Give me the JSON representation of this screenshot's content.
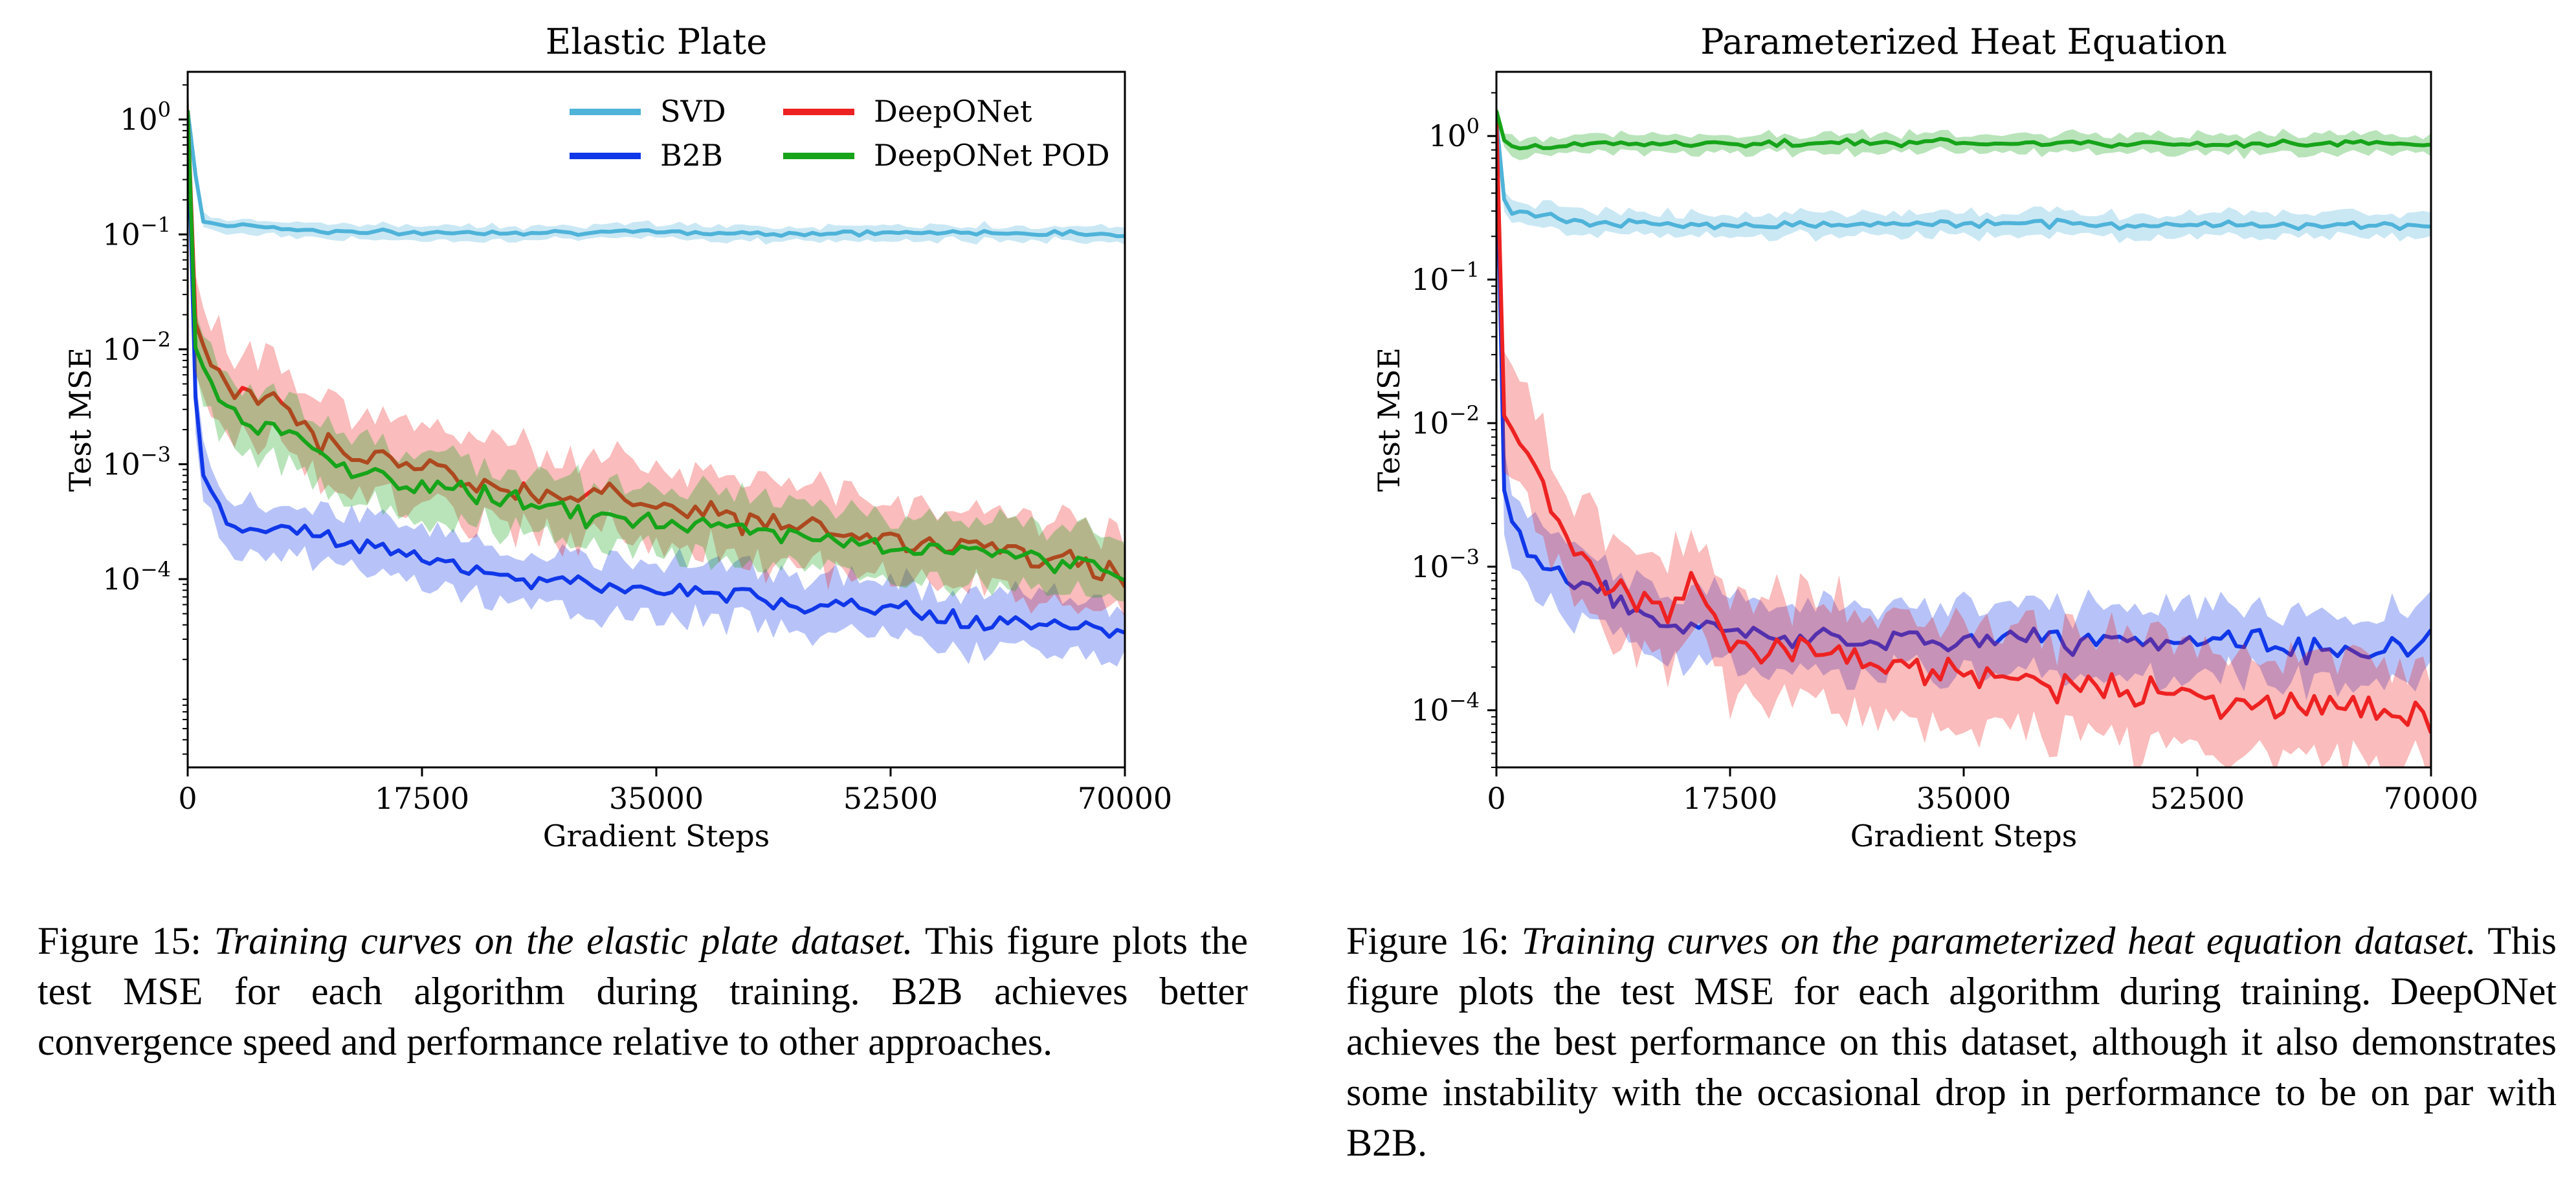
{
  "chart_data": [
    {
      "type": "line",
      "title": "Elastic Plate",
      "xlabel": "Gradient Steps",
      "ylabel": "Test MSE",
      "y_scale": "log",
      "xlim": [
        0,
        70000
      ],
      "ylim": [
        2.3e-06,
        2.6
      ],
      "x_ticks": [
        0,
        17500,
        35000,
        52500,
        70000
      ],
      "x_tick_labels": [
        "0",
        "17500",
        "35000",
        "52500",
        "70000"
      ],
      "y_ticks": [
        1,
        0.1,
        0.01,
        0.001,
        0.0001
      ],
      "y_tick_labels": [
        {
          "base": "10",
          "exp": "0"
        },
        {
          "base": "10",
          "exp": "−1"
        },
        {
          "base": "10",
          "exp": "−2"
        },
        {
          "base": "10",
          "exp": "−3"
        },
        {
          "base": "10",
          "exp": "−4"
        }
      ],
      "grid": false,
      "legend_position": "upper-right",
      "legend_columns": 2,
      "shaded_band": "spread across runs",
      "series": [
        {
          "name": "SVD",
          "color": "#4fb3d9",
          "x": [
            0,
            1000,
            3000,
            5000,
            8000,
            12000,
            17500,
            25000,
            35000,
            45000,
            52500,
            60000,
            70000
          ],
          "values": [
            1.2,
            0.13,
            0.12,
            0.12,
            0.11,
            0.105,
            0.103,
            0.105,
            0.104,
            0.102,
            0.103,
            0.104,
            0.1
          ],
          "band": 0.08
        },
        {
          "name": "B2B",
          "color": "#1037e8",
          "x": [
            0,
            700,
            1500,
            3000,
            5000,
            7000,
            10000,
            13000,
            17500,
            22000,
            26000,
            30000,
            35000,
            40000,
            45000,
            52500,
            57000,
            62000,
            67000,
            70000
          ],
          "values": [
            1.2,
            0.0012,
            0.0006,
            0.00035,
            0.00025,
            0.0003,
            0.00022,
            0.0002,
            0.00015,
            0.00012,
            0.0001,
            9e-05,
            8e-05,
            7.5e-05,
            6e-05,
            5.5e-05,
            4.5e-05,
            4e-05,
            3.8e-05,
            3.5e-05
          ],
          "band": 0.3
        },
        {
          "name": "DeepONet",
          "color": "#ee2222",
          "x": [
            0,
            600,
            1500,
            3000,
            5000,
            8000,
            10000,
            13000,
            17500,
            20000,
            24000,
            28000,
            31000,
            35000,
            40000,
            45000,
            50000,
            55000,
            60000,
            65000,
            70000
          ],
          "values": [
            1.2,
            0.015,
            0.009,
            0.005,
            0.004,
            0.003,
            0.0015,
            0.0012,
            0.001,
            0.0008,
            0.0006,
            0.0005,
            0.0007,
            0.0004,
            0.00035,
            0.0003,
            0.00025,
            0.0002,
            0.00018,
            0.00015,
            0.0001
          ],
          "band": 0.45
        },
        {
          "name": "DeepONet POD",
          "color": "#17a41a",
          "x": [
            0,
            600,
            1500,
            3000,
            5000,
            8000,
            10000,
            13000,
            17500,
            20000,
            24000,
            28000,
            31000,
            35000,
            40000,
            45000,
            50000,
            55000,
            60000,
            65000,
            70000
          ],
          "values": [
            1.2,
            0.009,
            0.006,
            0.003,
            0.002,
            0.0018,
            0.0012,
            0.0008,
            0.00065,
            0.0006,
            0.0005,
            0.0004,
            0.00035,
            0.0003,
            0.00028,
            0.00025,
            0.0002,
            0.00018,
            0.00017,
            0.00015,
            0.00011
          ],
          "band": 0.35
        }
      ]
    },
    {
      "type": "line",
      "title": "Parameterized Heat Equation",
      "xlabel": "Gradient Steps",
      "ylabel": "Test MSE",
      "y_scale": "log",
      "xlim": [
        0,
        70000
      ],
      "ylim": [
        4e-05,
        2.8
      ],
      "x_ticks": [
        0,
        17500,
        35000,
        52500,
        70000
      ],
      "x_tick_labels": [
        "0",
        "17500",
        "35000",
        "52500",
        "70000"
      ],
      "y_ticks": [
        1,
        0.1,
        0.01,
        0.001,
        0.0001
      ],
      "y_tick_labels": [
        {
          "base": "10",
          "exp": "0"
        },
        {
          "base": "10",
          "exp": "−1"
        },
        {
          "base": "10",
          "exp": "−2"
        },
        {
          "base": "10",
          "exp": "−3"
        },
        {
          "base": "10",
          "exp": "−4"
        }
      ],
      "grid": false,
      "shaded_band": "spread across runs",
      "series": [
        {
          "name": "SVD",
          "color": "#4fb3d9",
          "x": [
            0,
            700,
            2000,
            4000,
            7000,
            10000,
            17500,
            25000,
            35000,
            45000,
            52500,
            60000,
            70000
          ],
          "values": [
            1.3,
            0.28,
            0.3,
            0.27,
            0.24,
            0.25,
            0.24,
            0.24,
            0.245,
            0.24,
            0.24,
            0.24,
            0.24
          ],
          "band": 0.1
        },
        {
          "name": "B2B",
          "color": "#1037e8",
          "x": [
            0,
            400,
            1200,
            2500,
            4000,
            6000,
            8000,
            10000,
            13000,
            17500,
            22000,
            27000,
            31000,
            35000,
            40000,
            45000,
            52500,
            58000,
            62000,
            66000,
            70000
          ],
          "values": [
            1.3,
            0.004,
            0.002,
            0.0012,
            0.001,
            0.0008,
            0.0007,
            0.0005,
            0.0004,
            0.00035,
            0.00032,
            0.0003,
            0.0003,
            0.0003,
            0.00032,
            0.0003,
            0.00032,
            0.0003,
            0.00025,
            0.00025,
            0.0003
          ],
          "band": 0.3
        },
        {
          "name": "DeepONet",
          "color": "#ee2222",
          "x": [
            0,
            400,
            1200,
            2500,
            4000,
            6000,
            8000,
            10000,
            13000,
            15000,
            17500,
            20000,
            24000,
            28000,
            31000,
            35000,
            40000,
            45000,
            50000,
            55000,
            60000,
            65000,
            70000
          ],
          "values": [
            1.3,
            0.012,
            0.009,
            0.005,
            0.003,
            0.0015,
            0.0009,
            0.0007,
            0.0005,
            0.0008,
            0.0003,
            0.00025,
            0.00025,
            0.00022,
            0.0002,
            0.00018,
            0.00016,
            0.00014,
            0.00013,
            0.00012,
            0.00011,
            0.0001,
            9e-05
          ],
          "band": 0.45
        },
        {
          "name": "DeepONet POD",
          "color": "#17a41a",
          "x": [
            0,
            700,
            3000,
            8000,
            17500,
            25000,
            35000,
            45000,
            52500,
            60000,
            70000
          ],
          "values": [
            1.5,
            0.85,
            0.85,
            0.88,
            0.88,
            0.9,
            0.9,
            0.88,
            0.88,
            0.88,
            0.88
          ],
          "band": 0.08
        }
      ]
    }
  ],
  "captions": {
    "left": {
      "label": "Figure 15:",
      "title": "Training curves on the elastic plate dataset.",
      "body": "This figure plots the test MSE for each algorithm during training. B2B achieves better convergence speed and performance relative to other approaches."
    },
    "right": {
      "label": "Figure 16:",
      "title": "Training curves on the parameterized heat equation dataset.",
      "body": "This figure plots the test MSE for each algorithm during training. DeepONet achieves the best performance on this dataset, although it also demonstrates some instability with the occasional drop in performance to be on par with B2B."
    }
  }
}
